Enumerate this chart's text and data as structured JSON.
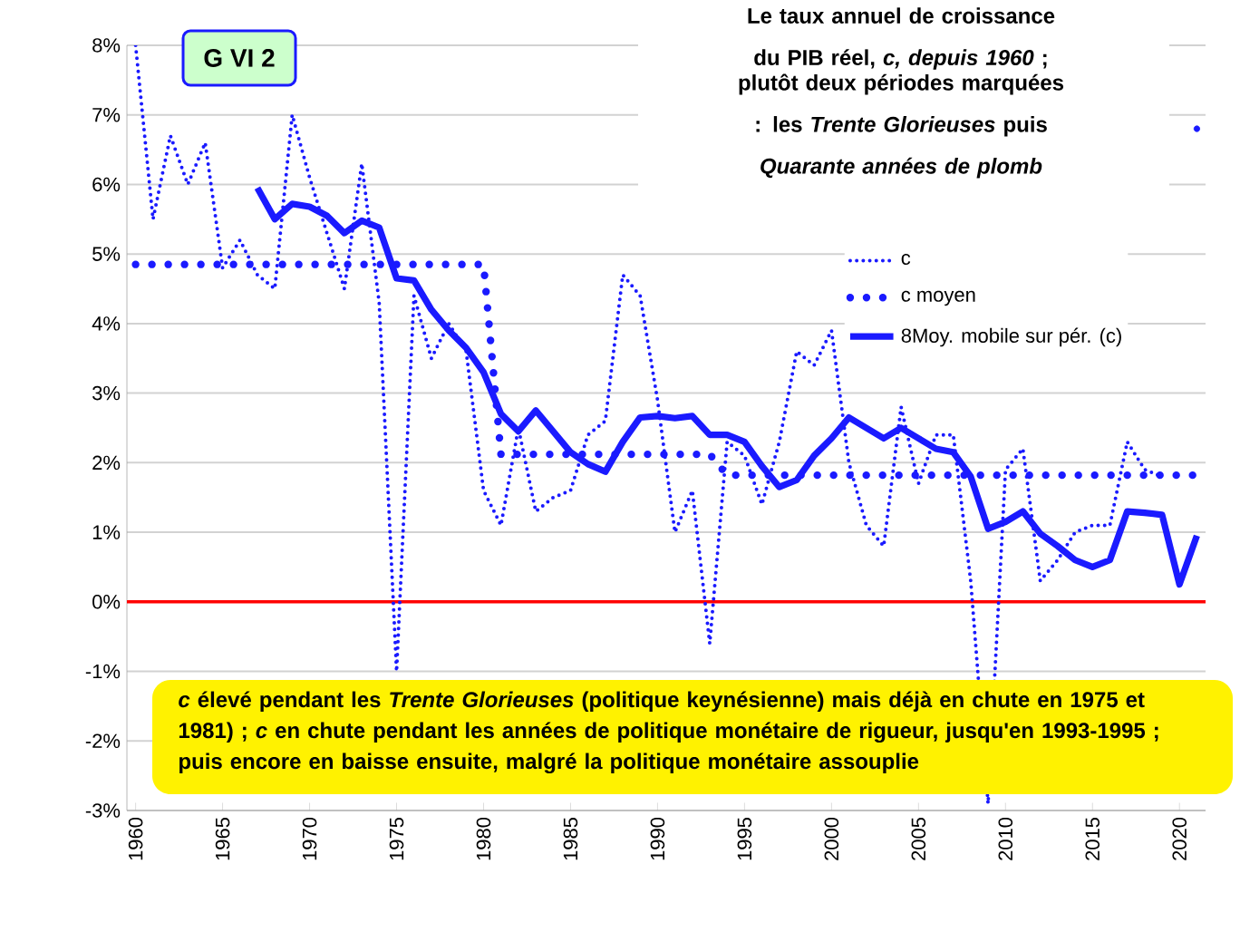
{
  "chart_data": {
    "type": "line",
    "title": "Le taux annuel de croissance du PIB réel, *c, depuis 1960* ;",
    "subtitle": "plutôt deux périodes marquées : les *Trente Glorieuses* puis *Quarante années de plomb*",
    "x": [
      1960,
      1961,
      1962,
      1963,
      1964,
      1965,
      1966,
      1967,
      1968,
      1969,
      1970,
      1971,
      1972,
      1973,
      1974,
      1975,
      1976,
      1977,
      1978,
      1979,
      1980,
      1981,
      1982,
      1983,
      1984,
      1985,
      1986,
      1987,
      1988,
      1989,
      1990,
      1991,
      1992,
      1993,
      1994,
      1995,
      1996,
      1997,
      1998,
      1999,
      2000,
      2001,
      2002,
      2003,
      2004,
      2005,
      2006,
      2007,
      2008,
      2009,
      2010,
      2011,
      2012,
      2013,
      2014,
      2015,
      2016,
      2017,
      2018,
      2019,
      2020,
      2021
    ],
    "xlim": [
      1959.5,
      2021.5
    ],
    "xticks": [
      1960,
      1965,
      1970,
      1975,
      1980,
      1985,
      1990,
      1995,
      2000,
      2005,
      2010,
      2015,
      2020
    ],
    "ylim": [
      -3,
      8
    ],
    "yticks": [
      {
        "value": -3,
        "label": "-3%"
      },
      {
        "value": -2,
        "label": "-2%"
      },
      {
        "value": -1,
        "label": "-1%"
      },
      {
        "value": 0,
        "label": "0%"
      },
      {
        "value": 1,
        "label": "1%"
      },
      {
        "value": 2,
        "label": "2%"
      },
      {
        "value": 3,
        "label": "3%"
      },
      {
        "value": 4,
        "label": "4%"
      },
      {
        "value": 5,
        "label": "5%"
      },
      {
        "value": 6,
        "label": "6%"
      },
      {
        "value": 7,
        "label": "7%"
      },
      {
        "value": 8,
        "label": "8%"
      }
    ],
    "grid": "y",
    "legend": "right",
    "series": [
      {
        "name": "c",
        "color": "#1a1aff",
        "line_style": "dotted",
        "values": [
          8.0,
          5.5,
          6.7,
          6.0,
          6.6,
          4.8,
          5.2,
          4.7,
          4.5,
          7.0,
          6.1,
          5.3,
          4.5,
          6.3,
          4.3,
          -1.0,
          4.4,
          3.5,
          4.0,
          3.6,
          1.6,
          1.1,
          2.5,
          1.3,
          1.5,
          1.6,
          2.4,
          2.6,
          4.7,
          4.4,
          2.9,
          1.0,
          1.6,
          -0.6,
          2.3,
          2.1,
          1.4,
          2.3,
          3.6,
          3.4,
          3.9,
          2.0,
          1.1,
          0.8,
          2.8,
          1.7,
          2.4,
          2.4,
          0.3,
          -2.9,
          1.9,
          2.2,
          0.3,
          0.6,
          1.0,
          1.1,
          1.1,
          2.3,
          1.9,
          1.8,
          null,
          6.8
        ]
      },
      {
        "name": "c moyen",
        "color": "#1a1aff",
        "line_style": "dotted",
        "values": [
          4.85,
          4.85,
          4.85,
          4.85,
          4.85,
          4.85,
          4.85,
          4.85,
          4.85,
          4.85,
          4.85,
          4.85,
          4.85,
          4.85,
          4.85,
          4.85,
          4.85,
          4.85,
          4.85,
          4.85,
          4.85,
          2.12,
          2.12,
          2.12,
          2.12,
          2.12,
          2.12,
          2.12,
          2.12,
          2.12,
          2.12,
          2.12,
          2.12,
          2.12,
          1.82,
          1.82,
          1.82,
          1.82,
          1.82,
          1.82,
          1.82,
          1.82,
          1.82,
          1.82,
          1.82,
          1.82,
          1.82,
          1.82,
          1.82,
          1.82,
          1.82,
          1.82,
          1.82,
          1.82,
          1.82,
          1.82,
          1.82,
          1.82,
          1.82,
          1.82,
          1.82,
          1.82
        ]
      },
      {
        "name": "8Moy. mobile sur pér. (c)",
        "color": "#1a1aff",
        "line_style": "solid",
        "values": [
          null,
          null,
          null,
          null,
          null,
          null,
          null,
          5.95,
          5.5,
          5.72,
          5.68,
          5.55,
          5.3,
          5.48,
          5.38,
          4.65,
          4.62,
          4.2,
          3.9,
          3.65,
          3.3,
          2.7,
          2.45,
          2.75,
          2.45,
          2.15,
          1.98,
          1.87,
          2.3,
          2.65,
          2.67,
          2.64,
          2.67,
          2.4,
          2.4,
          2.3,
          1.95,
          1.65,
          1.75,
          2.1,
          2.35,
          2.65,
          2.5,
          2.35,
          2.5,
          2.35,
          2.2,
          2.15,
          1.8,
          1.05,
          1.15,
          1.3,
          0.98,
          0.8,
          0.6,
          0.5,
          0.6,
          1.3,
          1.28,
          1.25,
          0.25,
          0.95
        ]
      }
    ],
    "ref_lines": [
      {
        "axis": "y",
        "value": 0,
        "color": "#ff0000"
      }
    ],
    "annotations": [
      "G VI 2",
      "*c* élevé pendant les *Trente Glorieuses* (politique keynésienne) mais déjà en chute en 1975 et 1981) ; *c* en chute pendant les années de politique monétaire de rigueur, jusqu'en 1993-1995 ; puis encore en baisse ensuite, malgré la politique monétaire assouplie"
    ]
  }
}
